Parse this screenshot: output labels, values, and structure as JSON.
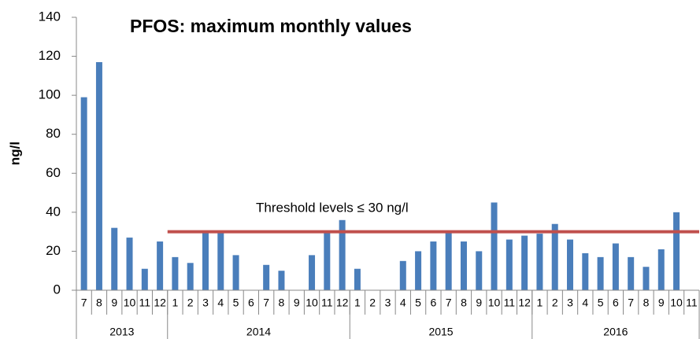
{
  "chart_data": {
    "type": "bar",
    "title": "PFOS: maximum monthly values",
    "y_label": "ng/l",
    "categories": [
      "7",
      "8",
      "9",
      "10",
      "11",
      "12",
      "1",
      "2",
      "3",
      "4",
      "5",
      "6",
      "7",
      "8",
      "9",
      "10",
      "11",
      "12",
      "1",
      "2",
      "3",
      "4",
      "5",
      "6",
      "7",
      "8",
      "9",
      "10",
      "11",
      "12",
      "1",
      "2",
      "3",
      "4",
      "5",
      "6",
      "7",
      "8",
      "9",
      "10",
      "11"
    ],
    "groups": [
      {
        "label": "2013",
        "size": 6
      },
      {
        "label": "2014",
        "size": 12
      },
      {
        "label": "2015",
        "size": 12
      },
      {
        "label": "2016",
        "size": 11
      }
    ],
    "values": [
      99,
      117,
      32,
      27,
      11,
      25,
      17,
      14,
      30,
      30,
      18,
      null,
      13,
      10,
      null,
      18,
      30,
      36,
      11,
      null,
      null,
      15,
      20,
      25,
      30,
      25,
      20,
      45,
      26,
      28,
      29,
      34,
      26,
      19,
      17,
      24,
      17,
      12,
      21,
      40,
      null
    ],
    "color": "#4a7ebb",
    "ylim": [
      0,
      140
    ],
    "yticks": [
      0,
      20,
      40,
      60,
      80,
      100,
      120,
      140
    ],
    "threshold": {
      "value": 30,
      "label": "Threshold levels ≤ 30 ng/l",
      "color": "#c0504d",
      "start_index": 6
    }
  }
}
